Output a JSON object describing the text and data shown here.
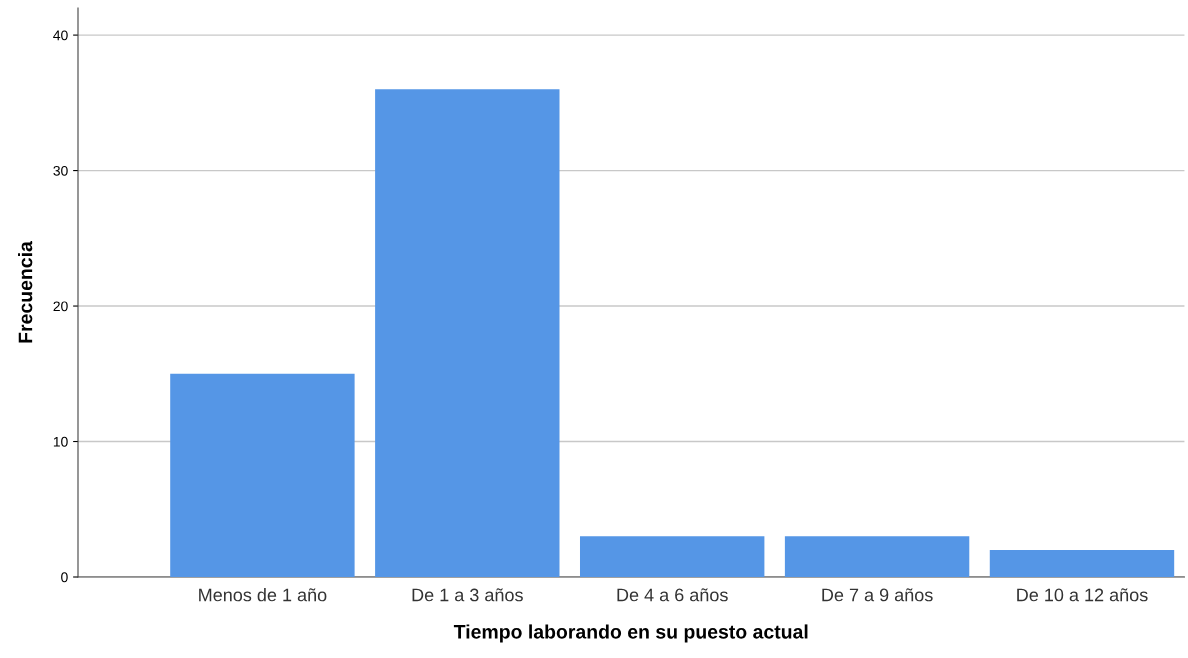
{
  "chart_data": {
    "type": "bar",
    "xlabel": "Tiempo laborando en su puesto actual",
    "ylabel": "Frecuencia",
    "categories": [
      "Menos de 1 año",
      "De 1 a 3 años",
      "De 4 a 6 años",
      "De 7 a 9 años",
      "De 10 a 12 años"
    ],
    "values": [
      15,
      36,
      3,
      3,
      2
    ],
    "color": "#5596e6",
    "ylim": [
      0,
      42
    ],
    "yticks": [
      0,
      10,
      20,
      30,
      40
    ],
    "grid": "y"
  }
}
